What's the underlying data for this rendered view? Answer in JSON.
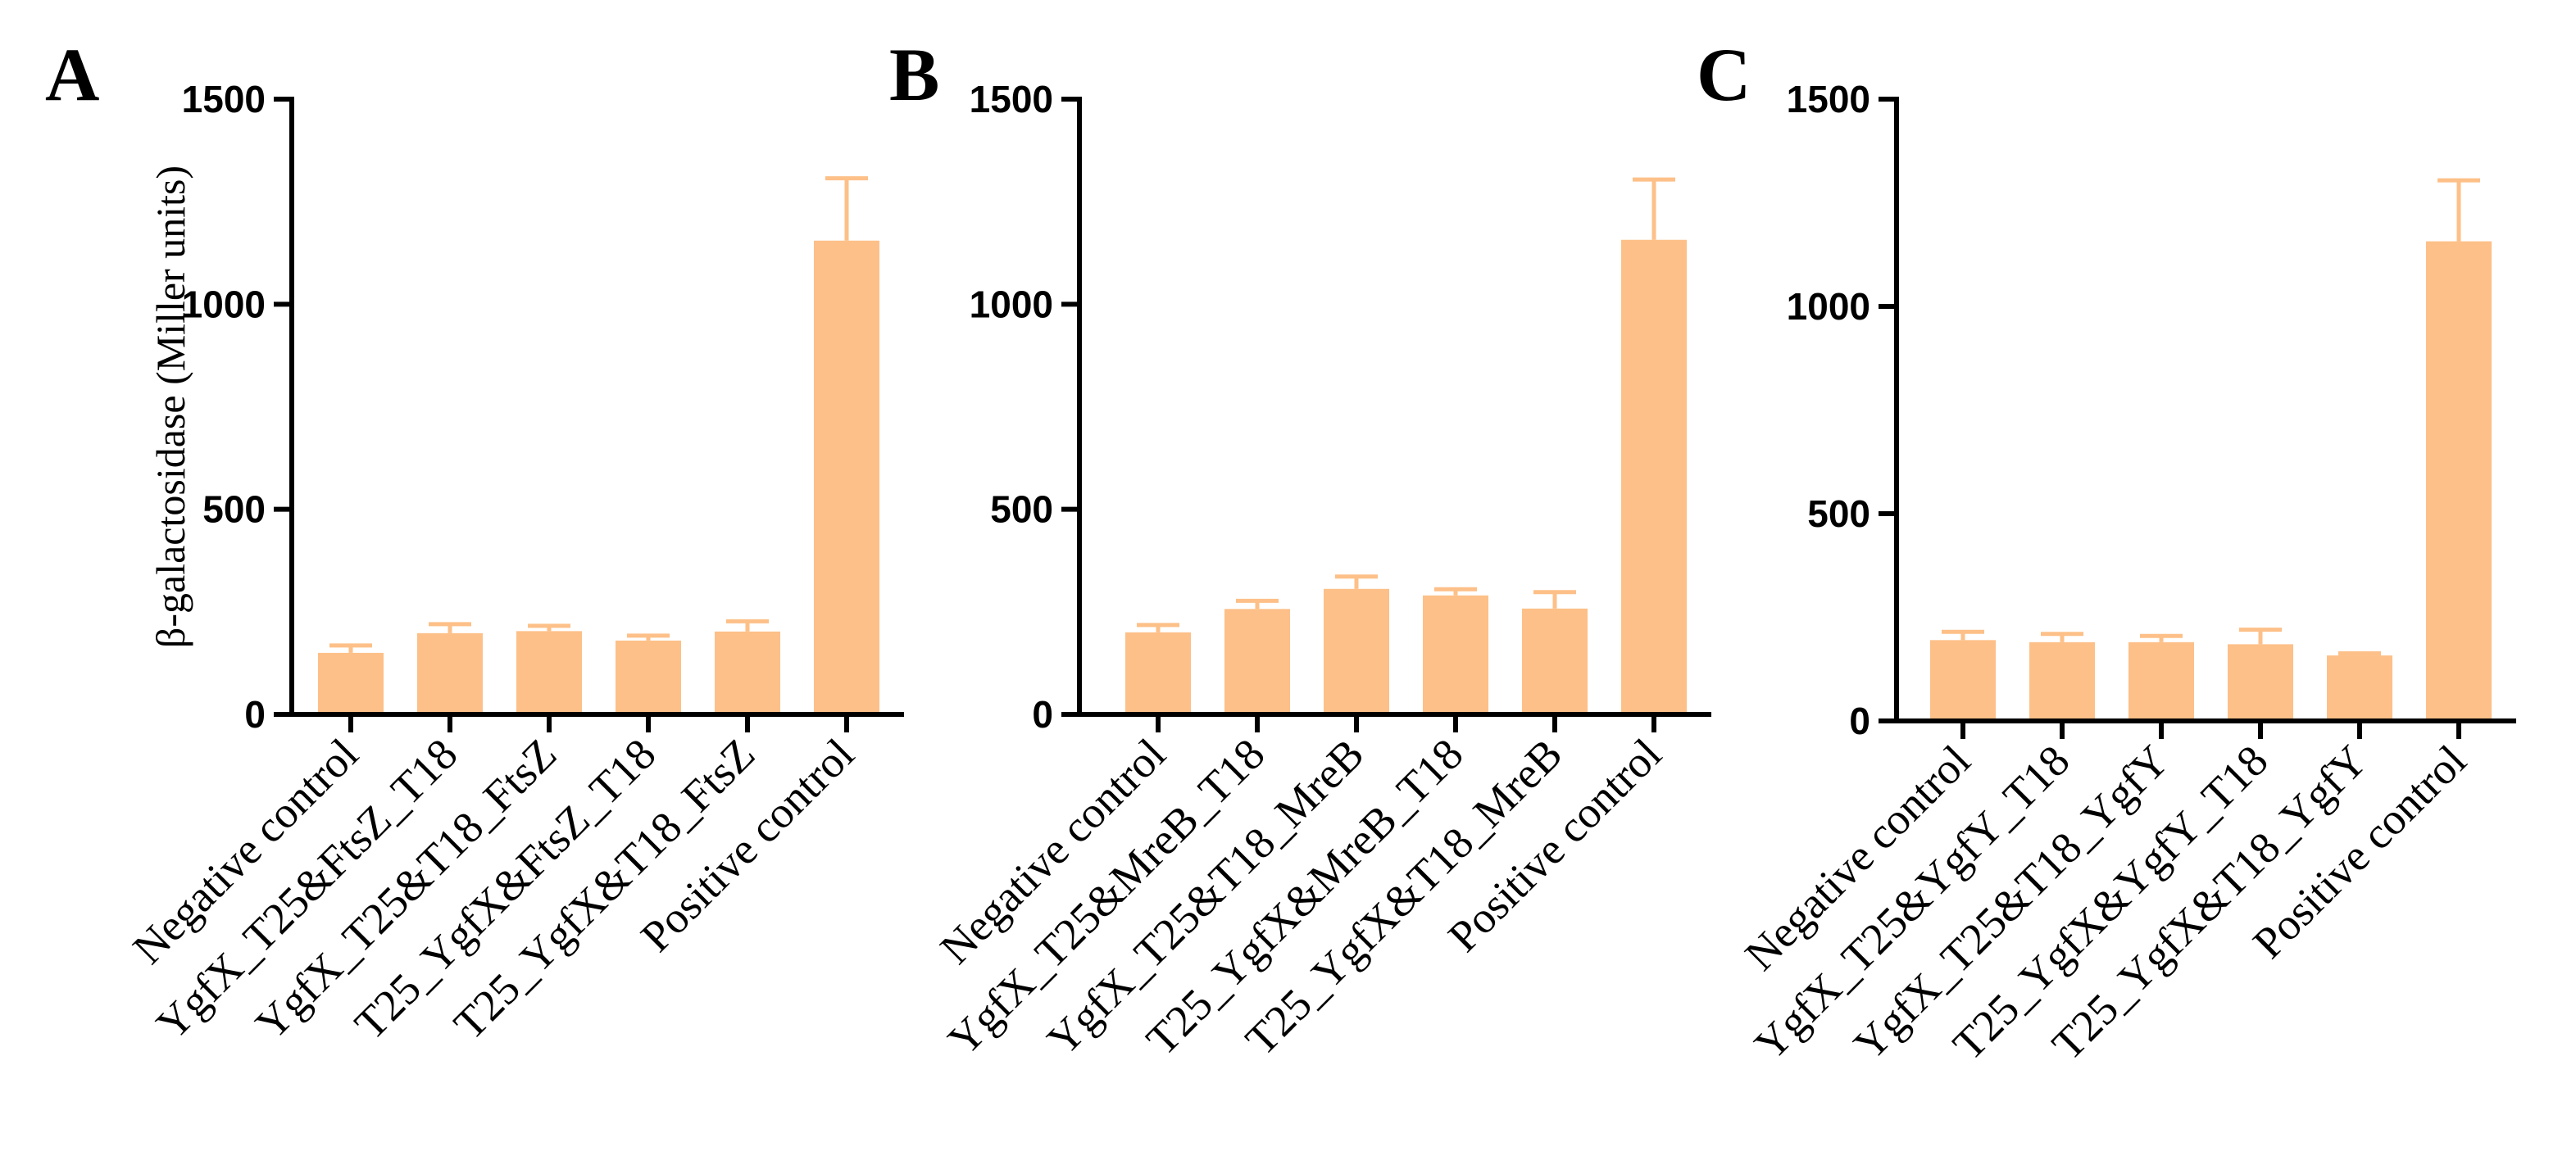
{
  "bar_color": "#FDC088",
  "axis_color": "#000000",
  "chart_data": [
    {
      "type": "bar",
      "panel": "A",
      "ylabel": "β-galactosidase (Miller units)",
      "ylim": [
        0,
        1500
      ],
      "yticks": [
        0,
        500,
        1000,
        1500
      ],
      "categories": [
        "Negative control",
        "YgfX_T25&FtsZ_T18",
        "YgfX_T25&T18_FtsZ",
        "T25_YgfX&FtsZ_T18",
        "T25_YgfX&T18_FtsZ",
        "Positive control"
      ],
      "values": [
        150,
        198,
        203,
        180,
        202,
        1155
      ],
      "errors": [
        18,
        22,
        13,
        12,
        25,
        152
      ]
    },
    {
      "type": "bar",
      "panel": "B",
      "ylabel": "",
      "ylim": [
        0,
        1500
      ],
      "yticks": [
        0,
        500,
        1000,
        1500
      ],
      "categories": [
        "Negative control",
        "YgfX_T25&MreB_T18",
        "YgfX_T25&T18_MreB",
        "T25_YgfX&MreB_T18",
        "T25_YgfX&T18_MreB",
        "Positive control"
      ],
      "values": [
        200,
        257,
        306,
        290,
        258,
        1157
      ],
      "errors": [
        18,
        20,
        30,
        15,
        40,
        147
      ]
    },
    {
      "type": "bar",
      "panel": "C",
      "ylabel": "",
      "ylim": [
        0,
        1500
      ],
      "yticks": [
        0,
        500,
        1000,
        1500
      ],
      "categories": [
        "Negative control",
        "YgfX_T25&YgfY_T18",
        "YgfX_T25&T18_YgfY",
        "T25_YgfX&YgfY_T18",
        "T25_YgfX&T18_YgfY",
        "Positive control"
      ],
      "values": [
        195,
        190,
        190,
        185,
        158,
        1157
      ],
      "errors": [
        20,
        20,
        15,
        35,
        5,
        147
      ]
    }
  ]
}
